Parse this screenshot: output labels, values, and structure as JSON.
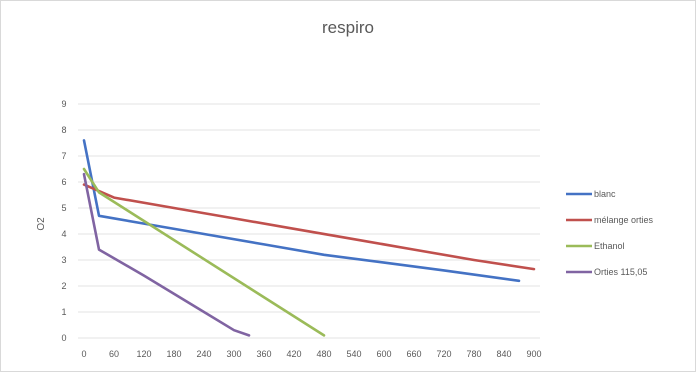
{
  "chart_data": {
    "type": "line",
    "title": "respiro",
    "xlabel": "",
    "ylabel": "O2",
    "xlim": [
      0,
      900
    ],
    "ylim": [
      0,
      9
    ],
    "xticks": [
      0,
      60,
      120,
      180,
      240,
      300,
      360,
      420,
      480,
      540,
      600,
      660,
      720,
      780,
      840,
      900
    ],
    "xtick_labels": [
      "0",
      "60",
      "120",
      "180",
      "240",
      "300",
      "360",
      "420",
      "480",
      "540",
      "600",
      "660",
      "720",
      "780",
      "840",
      "900"
    ],
    "yticks": [
      0,
      1,
      2,
      3,
      4,
      5,
      6,
      7,
      8,
      9
    ],
    "grid": "horizontal",
    "legend": "right",
    "series": [
      {
        "name": "blanc",
        "color": "#4472c4",
        "x": [
          0,
          30,
          120,
          240,
          360,
          480,
          600,
          720,
          870
        ],
        "y": [
          7.6,
          4.7,
          4.4,
          4.0,
          3.6,
          3.2,
          2.9,
          2.6,
          2.2
        ]
      },
      {
        "name": "mélange orties",
        "color": "#c0504d",
        "x": [
          0,
          60,
          180,
          300,
          420,
          540,
          660,
          780,
          900
        ],
        "y": [
          5.9,
          5.4,
          5.0,
          4.6,
          4.2,
          3.8,
          3.4,
          3.0,
          2.65
        ]
      },
      {
        "name": "Ethanol",
        "color": "#9bbb59",
        "x": [
          0,
          30,
          480
        ],
        "y": [
          6.5,
          5.6,
          0.1
        ]
      },
      {
        "name": "Orties 115,05",
        "color": "#8064a2",
        "x": [
          0,
          30,
          120,
          240,
          300,
          330
        ],
        "y": [
          6.3,
          3.4,
          2.4,
          1.0,
          0.3,
          0.1
        ]
      }
    ]
  }
}
